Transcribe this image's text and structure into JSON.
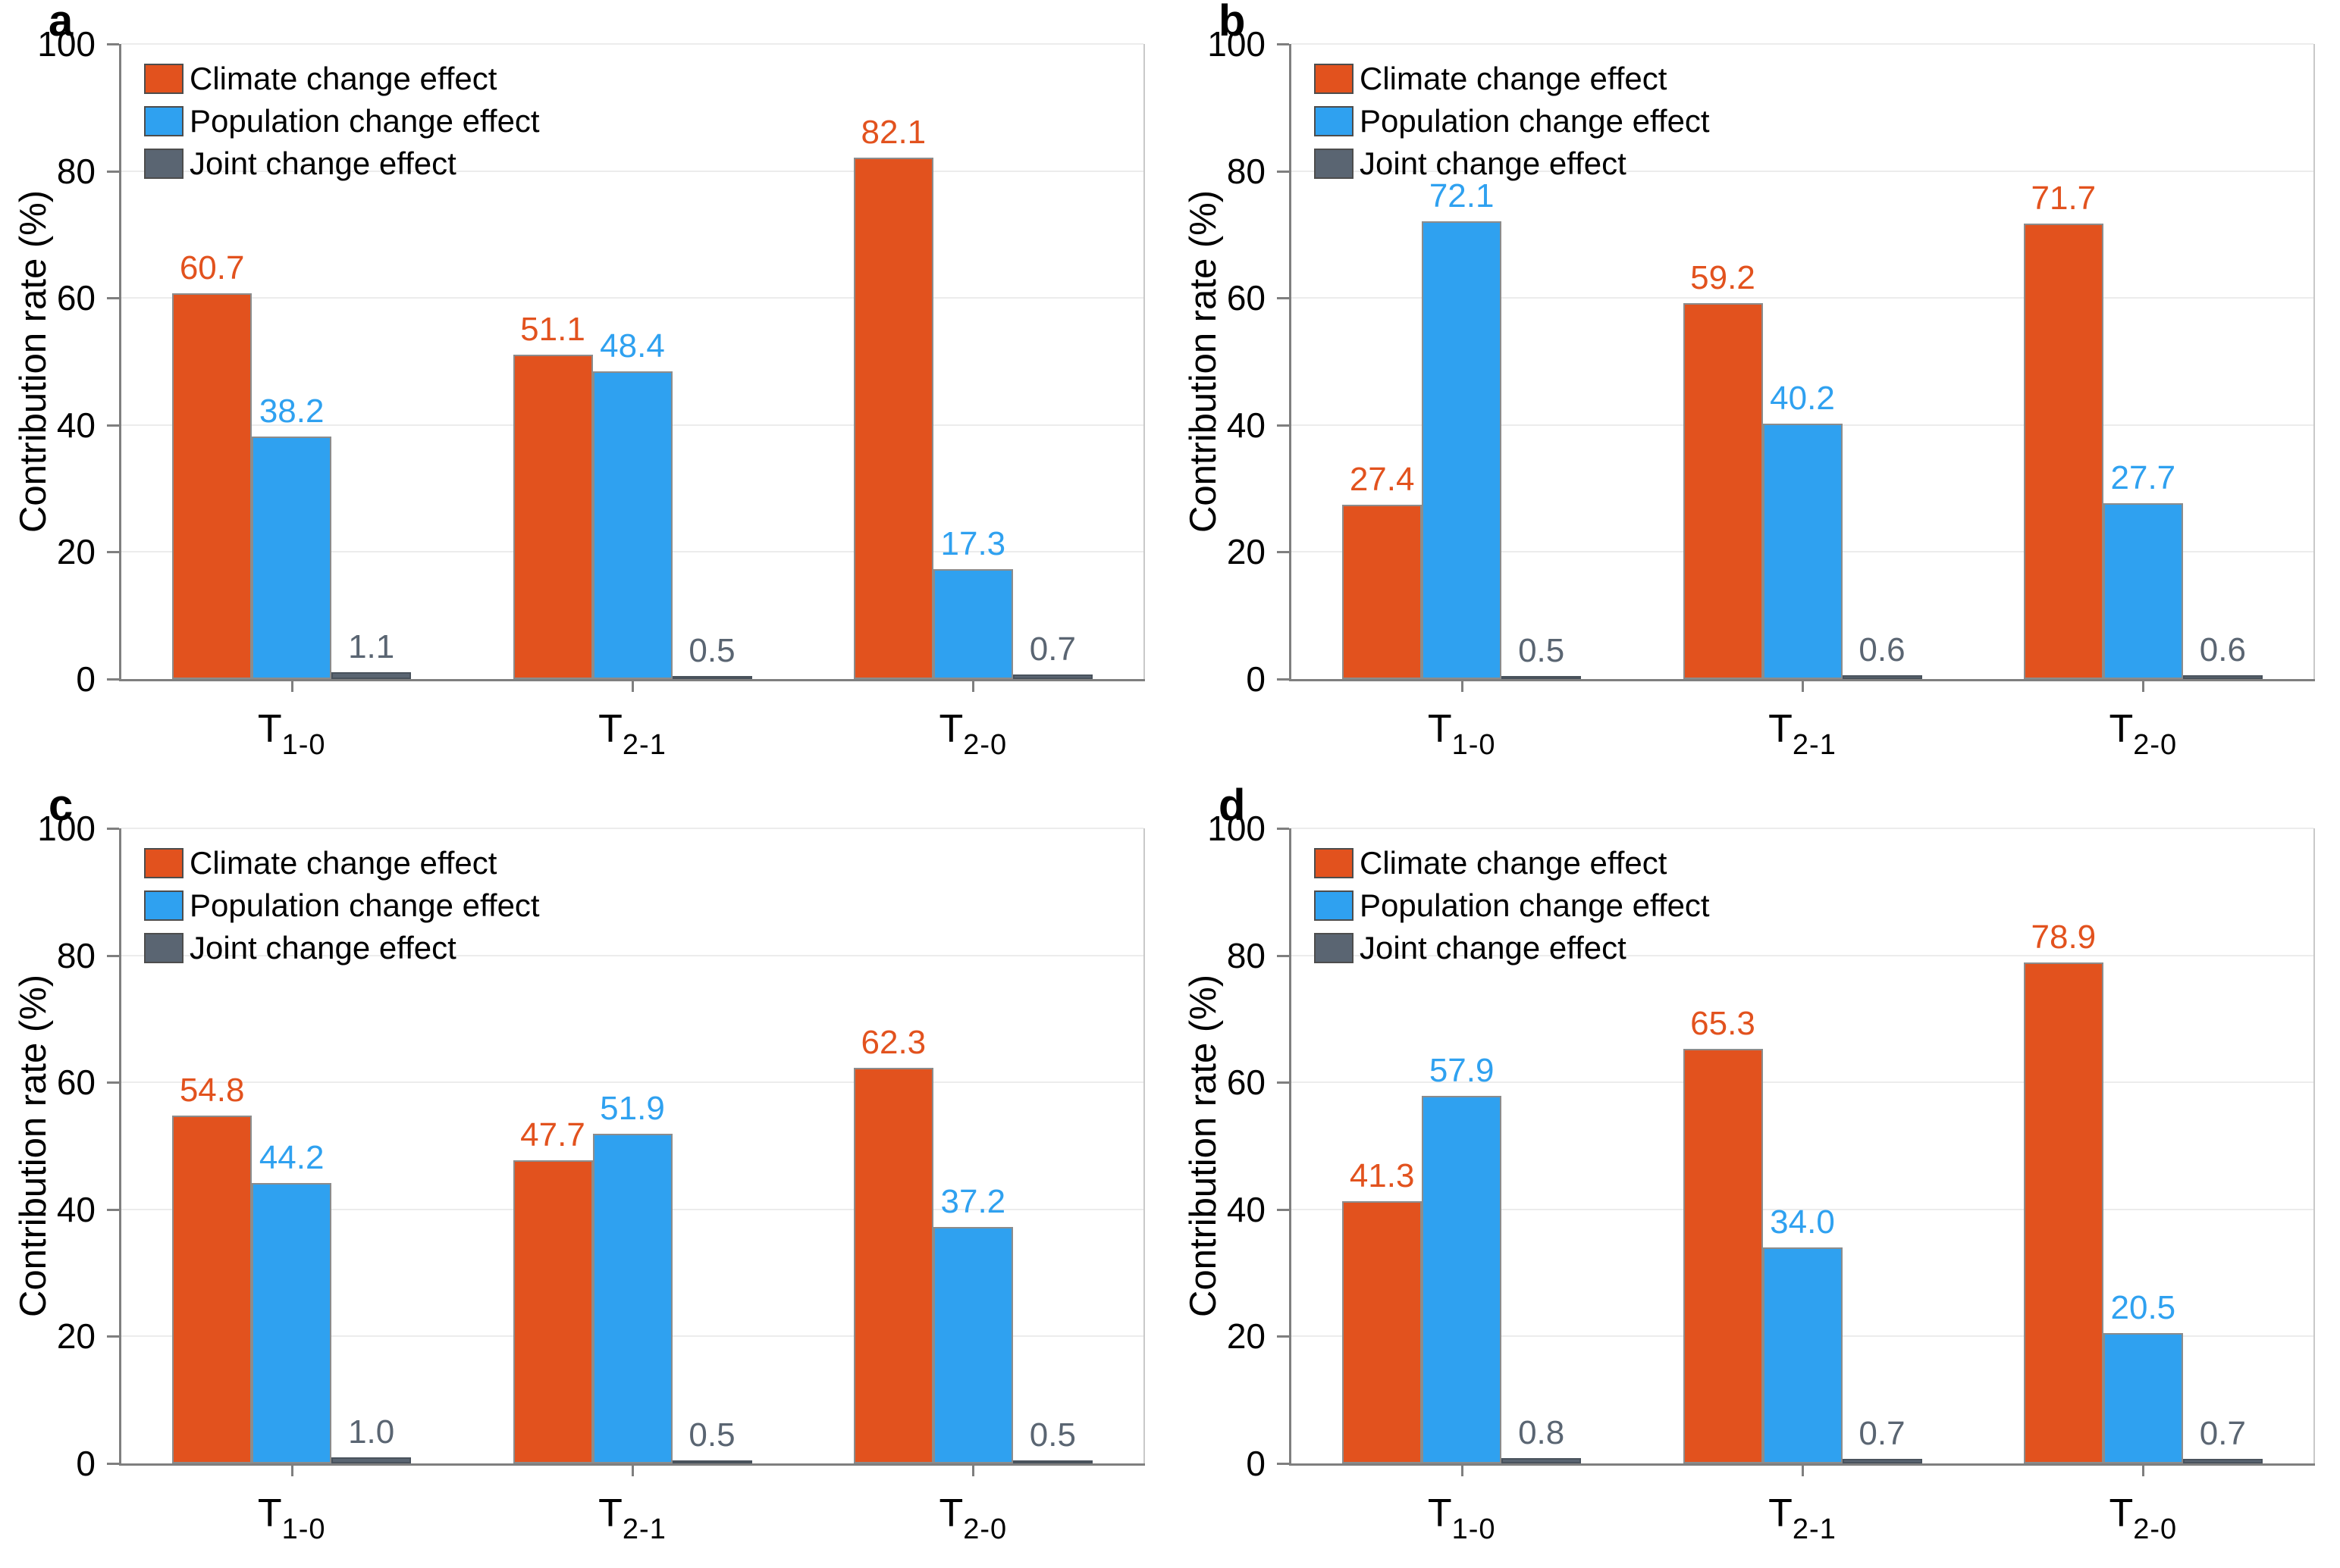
{
  "ylabel": "Contribution rate (%)",
  "yticks": [
    0,
    20,
    40,
    60,
    80,
    100
  ],
  "colors": {
    "climate": "#E2521E",
    "population": "#2FA1F0",
    "joint": "#5A6572",
    "axis": "#7F7F7F",
    "gridline": "#ECECEC",
    "plot_right_border": "#C9C9C9",
    "bar_border": "#8C8C8C",
    "legend_swatch_border": "#4D4D4D",
    "text": "#000000"
  },
  "chart_data": [
    {
      "type": "bar",
      "panel": "a",
      "categories": [
        "T1-0",
        "T2-1",
        "T2-0"
      ],
      "category_parts": [
        {
          "base": "T",
          "sub": "1-0"
        },
        {
          "base": "T",
          "sub": "2-1"
        },
        {
          "base": "T",
          "sub": "2-0"
        }
      ],
      "ylabel": "Contribution rate (%)",
      "ylim": [
        0,
        100
      ],
      "grid": true,
      "legend_position": "top-left",
      "series": [
        {
          "name": "Climate change effect",
          "color": "#E2521E",
          "values": [
            60.7,
            51.1,
            82.1
          ],
          "labels": [
            "60.7",
            "51.1",
            "82.1"
          ]
        },
        {
          "name": "Population change effect",
          "color": "#2FA1F0",
          "values": [
            38.2,
            48.4,
            17.3
          ],
          "labels": [
            "38.2",
            "48.4",
            "17.3"
          ]
        },
        {
          "name": "Joint change effect",
          "color": "#5A6572",
          "values": [
            1.1,
            0.5,
            0.7
          ],
          "labels": [
            "1.1",
            "0.5",
            "0.7"
          ]
        }
      ]
    },
    {
      "type": "bar",
      "panel": "b",
      "categories": [
        "T1-0",
        "T2-1",
        "T2-0"
      ],
      "category_parts": [
        {
          "base": "T",
          "sub": "1-0"
        },
        {
          "base": "T",
          "sub": "2-1"
        },
        {
          "base": "T",
          "sub": "2-0"
        }
      ],
      "ylabel": "Contribution rate (%)",
      "ylim": [
        0,
        100
      ],
      "grid": true,
      "legend_position": "top-left",
      "series": [
        {
          "name": "Climate change effect",
          "color": "#E2521E",
          "values": [
            27.4,
            59.2,
            71.7
          ],
          "labels": [
            "27.4",
            "59.2",
            "71.7"
          ]
        },
        {
          "name": "Population change effect",
          "color": "#2FA1F0",
          "values": [
            72.1,
            40.2,
            27.7
          ],
          "labels": [
            "72.1",
            "40.2",
            "27.7"
          ]
        },
        {
          "name": "Joint change effect",
          "color": "#5A6572",
          "values": [
            0.5,
            0.6,
            0.6
          ],
          "labels": [
            "0.5",
            "0.6",
            "0.6"
          ]
        }
      ]
    },
    {
      "type": "bar",
      "panel": "c",
      "categories": [
        "T1-0",
        "T2-1",
        "T2-0"
      ],
      "category_parts": [
        {
          "base": "T",
          "sub": "1-0"
        },
        {
          "base": "T",
          "sub": "2-1"
        },
        {
          "base": "T",
          "sub": "2-0"
        }
      ],
      "ylabel": "Contribution rate (%)",
      "ylim": [
        0,
        100
      ],
      "grid": true,
      "legend_position": "top-left",
      "series": [
        {
          "name": "Climate change effect",
          "color": "#E2521E",
          "values": [
            54.8,
            47.7,
            62.3
          ],
          "labels": [
            "54.8",
            "47.7",
            "62.3"
          ]
        },
        {
          "name": "Population change effect",
          "color": "#2FA1F0",
          "values": [
            44.2,
            51.9,
            37.2
          ],
          "labels": [
            "44.2",
            "51.9",
            "37.2"
          ]
        },
        {
          "name": "Joint change effect",
          "color": "#5A6572",
          "values": [
            1.0,
            0.5,
            0.5
          ],
          "labels": [
            "1.0",
            "0.5",
            "0.5"
          ]
        }
      ]
    },
    {
      "type": "bar",
      "panel": "d",
      "categories": [
        "T1-0",
        "T2-1",
        "T2-0"
      ],
      "category_parts": [
        {
          "base": "T",
          "sub": "1-0"
        },
        {
          "base": "T",
          "sub": "2-1"
        },
        {
          "base": "T",
          "sub": "2-0"
        }
      ],
      "ylabel": "Contribution rate (%)",
      "ylim": [
        0,
        100
      ],
      "grid": true,
      "legend_position": "top-left",
      "series": [
        {
          "name": "Climate change effect",
          "color": "#E2521E",
          "values": [
            41.3,
            65.3,
            78.9
          ],
          "labels": [
            "41.3",
            "65.3",
            "78.9"
          ]
        },
        {
          "name": "Population change effect",
          "color": "#2FA1F0",
          "values": [
            57.9,
            34.0,
            20.5
          ],
          "labels": [
            "57.9",
            "34.0",
            "20.5"
          ]
        },
        {
          "name": "Joint change effect",
          "color": "#5A6572",
          "values": [
            0.8,
            0.7,
            0.7
          ],
          "labels": [
            "0.8",
            "0.7",
            "0.7"
          ]
        }
      ]
    }
  ]
}
